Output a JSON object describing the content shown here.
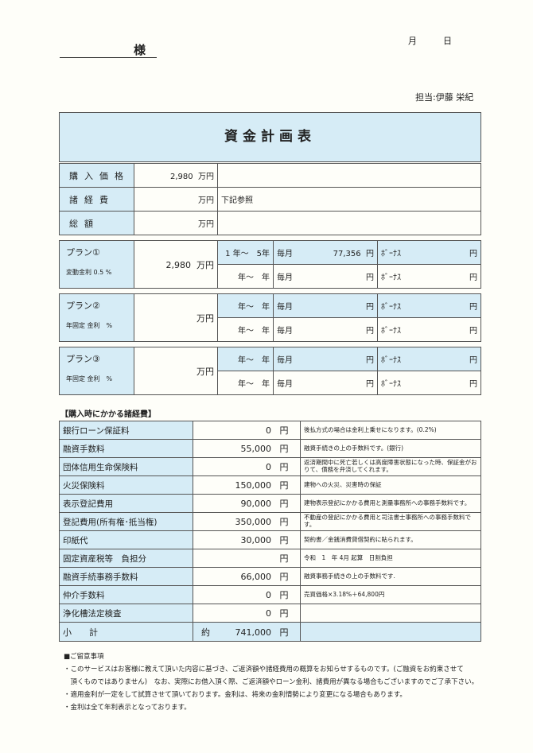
{
  "header": {
    "honorific": "様",
    "month": "月",
    "day": "日",
    "staff": "担当:伊藤 栄紀",
    "title": "資金計画表"
  },
  "summary": [
    {
      "label": "購入価格",
      "value": "2,980",
      "unit": "万円",
      "note": ""
    },
    {
      "label": "諸経費",
      "value": "",
      "unit": "万円",
      "note": "下記参照"
    },
    {
      "label": "総額",
      "value": "",
      "unit": "万円",
      "note": ""
    }
  ],
  "plans": [
    {
      "name": "プラン①",
      "rate": "変動金利 0.5 %",
      "amount": "2,980",
      "unit": "万円",
      "rows": [
        {
          "years": "1 年～　5年",
          "monthly_label": "毎月",
          "monthly": "77,356",
          "yen": "円",
          "bonus_label": "ﾎﾞｰﾅｽ",
          "bonus": "円"
        },
        {
          "years": "年～　年",
          "monthly_label": "毎月",
          "monthly": "",
          "yen": "円",
          "bonus_label": "ﾎﾞｰﾅｽ",
          "bonus": "円"
        }
      ]
    },
    {
      "name": "プラン②",
      "rate": "年固定 金利　%",
      "amount": "",
      "unit": "万円",
      "rows": [
        {
          "years": "年～　年",
          "monthly_label": "毎月",
          "monthly": "",
          "yen": "円",
          "bonus_label": "ﾎﾞｰﾅｽ",
          "bonus": "円"
        },
        {
          "years": "年～　年",
          "monthly_label": "毎月",
          "monthly": "",
          "yen": "円",
          "bonus_label": "ﾎﾞｰﾅｽ",
          "bonus": "円"
        }
      ]
    },
    {
      "name": "プラン③",
      "rate": "年固定 金利　%",
      "amount": "",
      "unit": "万円",
      "rows": [
        {
          "years": "年～　年",
          "monthly_label": "毎月",
          "monthly": "",
          "yen": "円",
          "bonus_label": "ﾎﾞｰﾅｽ",
          "bonus": "円"
        },
        {
          "years": "年～　年",
          "monthly_label": "毎月",
          "monthly": "",
          "yen": "円",
          "bonus_label": "ﾎﾞｰﾅｽ",
          "bonus": "円"
        }
      ]
    }
  ],
  "costs_heading": "【購入時にかかる諸経費】",
  "costs": [
    {
      "label": "銀行ローン保証料",
      "amount": "0",
      "unit": "円",
      "note": "後払方式の場合は金利上乗せになります。(0.2%)"
    },
    {
      "label": "融資手数料",
      "amount": "55,000",
      "unit": "円",
      "note": "融資手続きの上の手数料です。(銀行)"
    },
    {
      "label": "団体信用生命保険料",
      "amount": "0",
      "unit": "円",
      "note": "返済期間中に死亡若しくは高度障害状態になった時、保証金がおりて、債務を弁済してくれます。"
    },
    {
      "label": "火災保険料",
      "amount": "150,000",
      "unit": "円",
      "note": "建物への火災、災害時の保証"
    },
    {
      "label": "表示登記費用",
      "amount": "90,000",
      "unit": "円",
      "note": "建物表示登記にかかる費用と測量事務所への事務手数料です。"
    },
    {
      "label": "登記費用(所有権･抵当権)",
      "amount": "350,000",
      "unit": "円",
      "note": "不動産の登記にかかる費用と司法書士事務所への事務手数料です。"
    },
    {
      "label": "印紙代",
      "amount": "30,000",
      "unit": "円",
      "note": "契約書／金銭消費貸借契約に貼られます。"
    },
    {
      "label": "固定資産税等　負担分",
      "amount": "",
      "unit": "円",
      "note": "令和　1　年 4月 起算　日割負担"
    },
    {
      "label": "融資手続事務手数料",
      "amount": "66,000",
      "unit": "円",
      "note": "融資事務手続きの上の手数料です."
    },
    {
      "label": "仲介手数料",
      "amount": "0",
      "unit": "円",
      "note": "売買価格×3.18%＋64,800円"
    },
    {
      "label": "浄化槽法定検査",
      "amount": "0",
      "unit": "円",
      "note": ""
    }
  ],
  "subtotal": {
    "label": "小　　計",
    "prefix": "約",
    "amount": "741,000",
    "unit": "円"
  },
  "notes": {
    "heading": "■ご留意事項",
    "items": [
      "・このサービスはお客様に教えて頂いた内容に基づき、ご返済額や諸経費用の概算をお知らせするものです。(ご融資をお約束させて",
      "　頂くものではありません)　なお、実際にお借入頂く際、ご返済額やローン金利、諸費用が異なる場合もございますのでご了承下さい。",
      "・適用金利が一定をして試算させて頂いております。金利は、将来の金利情勢により変更になる場合もあります。",
      "・金利は全て年利表示となっております。"
    ]
  },
  "colors": {
    "cell_blue": "#d6ecf6",
    "border": "#555555"
  }
}
